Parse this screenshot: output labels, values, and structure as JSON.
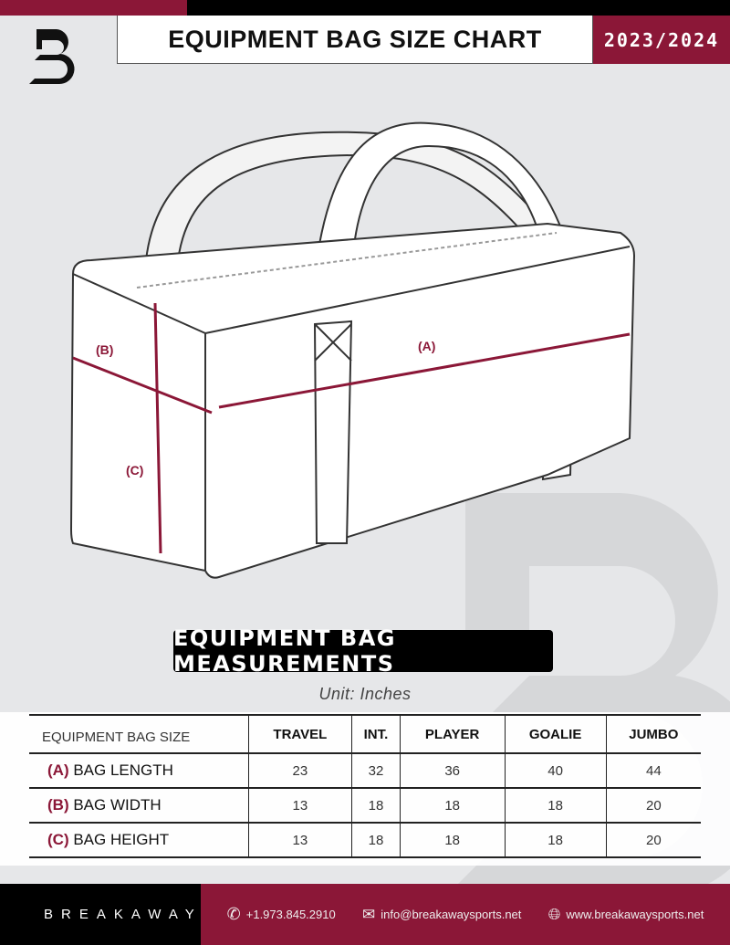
{
  "header": {
    "title": "EQUIPMENT BAG SIZE CHART",
    "season": "2023/2024",
    "logo_text": "B"
  },
  "diagram": {
    "label_a": "(A)",
    "label_b": "(B)",
    "label_c": "(C)"
  },
  "measurements_title": "EQUIPMENT BAG MEASUREMENTS",
  "unit": "Unit: Inches",
  "table": {
    "columns": [
      "EQUIPMENT BAG SIZE",
      "TRAVEL",
      "INT.",
      "PLAYER",
      "GOALIE",
      "JUMBO"
    ],
    "rows": [
      {
        "letter": "(A)",
        "label": "BAG LENGTH",
        "values": [
          "23",
          "32",
          "36",
          "40",
          "44"
        ]
      },
      {
        "letter": "(B)",
        "label": "BAG WIDTH",
        "values": [
          "13",
          "18",
          "18",
          "18",
          "20"
        ]
      },
      {
        "letter": "(C)",
        "label": "BAG HEIGHT",
        "values": [
          "13",
          "18",
          "18",
          "18",
          "20"
        ]
      }
    ]
  },
  "footer": {
    "brand": "BREAKAWAY",
    "phone": "+1.973.845.2910",
    "email": "info@breakawaysports.net",
    "website": "www.breakawaysports.net"
  },
  "colors": {
    "accent": "#8b1737",
    "background": "#e6e7e9"
  }
}
